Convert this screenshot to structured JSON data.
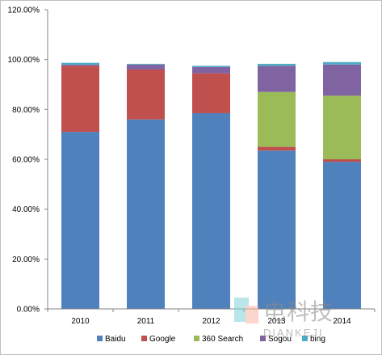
{
  "chart_data": {
    "type": "bar",
    "stacked": true,
    "categories": [
      "2010",
      "2011",
      "2012",
      "2013",
      "2014"
    ],
    "series": [
      {
        "name": "Baidu",
        "color": "#4f81bd",
        "values": [
          71.0,
          76.0,
          78.5,
          63.5,
          59.0
        ]
      },
      {
        "name": "Google",
        "color": "#c0504d",
        "values": [
          26.5,
          20.0,
          16.0,
          1.5,
          1.0
        ]
      },
      {
        "name": "360 Search",
        "color": "#9bbb59",
        "values": [
          0,
          0,
          0,
          22.0,
          25.5
        ]
      },
      {
        "name": "Sogou",
        "color": "#8064a2",
        "values": [
          0.5,
          2.0,
          2.5,
          10.5,
          12.5
        ]
      },
      {
        "name": "bing",
        "color": "#4bacc6",
        "values": [
          0.7,
          0.3,
          0.5,
          0.8,
          1.0
        ]
      }
    ],
    "ylim": [
      0,
      120
    ],
    "yticks": [
      0,
      20,
      40,
      60,
      80,
      100,
      120
    ],
    "ytick_labels": [
      "0.00%",
      "20.00%",
      "40.00%",
      "60.00%",
      "80.00%",
      "100.00%",
      "120.00%"
    ],
    "grid": false,
    "legend_position": "bottom"
  },
  "watermark": {
    "cn": "电科技",
    "en": "DIANKEJI"
  }
}
